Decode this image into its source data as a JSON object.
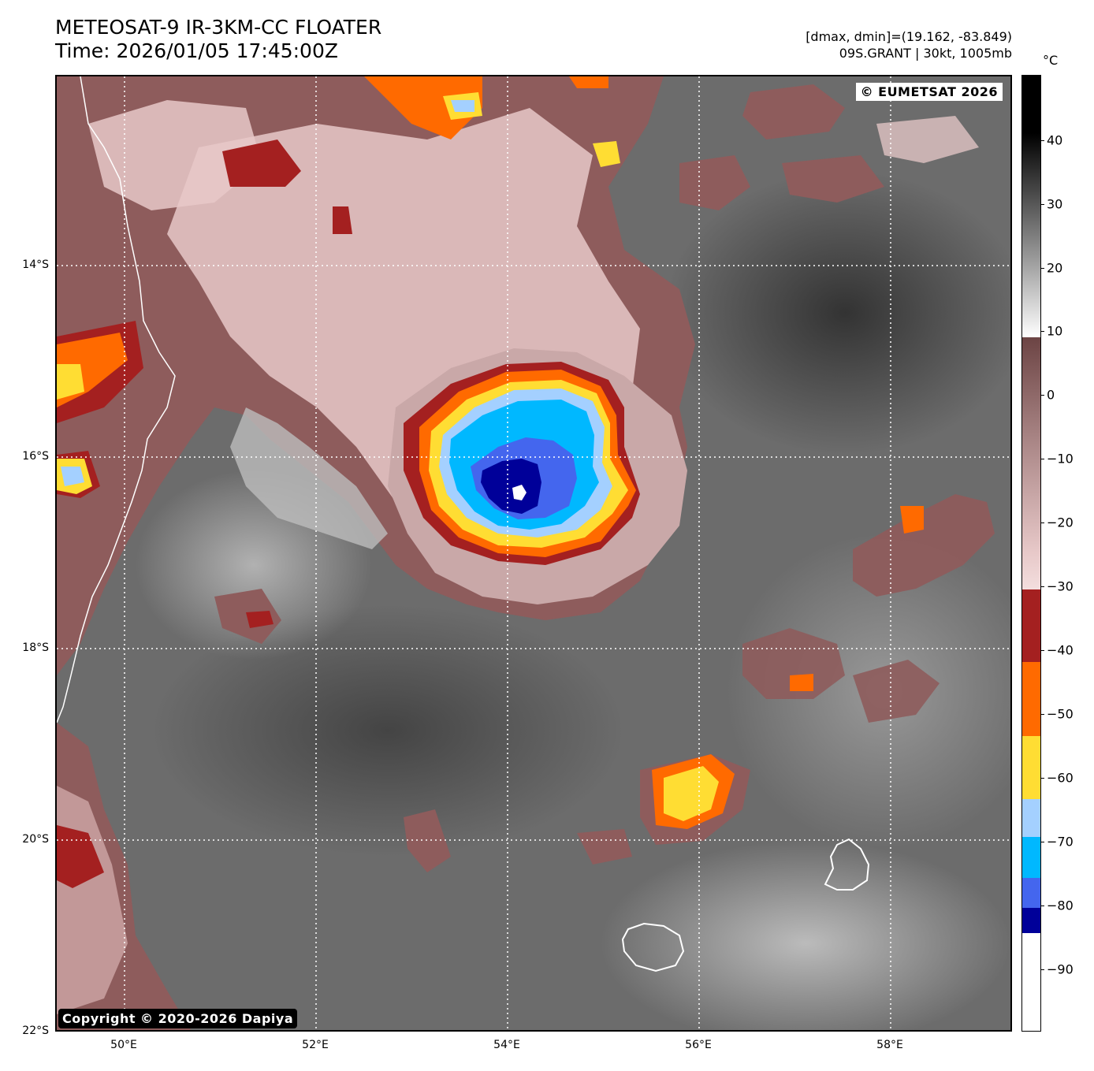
{
  "header": {
    "title_line1": "METEOSAT-9 IR-3KM-CC FLOATER",
    "title_line2": "Time: 2026/01/05 17:45:00Z",
    "dminmax": "[dmax, dmin]=(19.162, -83.849)",
    "storm": "09S.GRANT | 30kt, 1005mb"
  },
  "map": {
    "credit_top": "© EUMETSAT 2026",
    "credit_bottom": "Copyright © 2020-2026 Dapiya",
    "lat_labels": [
      "14°S",
      "16°S",
      "18°S",
      "20°S",
      "22°S"
    ],
    "lon_labels": [
      "50°E",
      "52°E",
      "54°E",
      "56°E",
      "58°E"
    ],
    "colors": {
      "background_gray": "#6a6a6a",
      "cloud_pink": "#e7c8c8",
      "cloud_mauve": "#8e5c5c",
      "dark_red": "#a42020",
      "orange": "#ff6a00",
      "yellow": "#ffdd33",
      "light_blue": "#a4d0ff",
      "cyan": "#00b8ff",
      "royal_blue": "#4466ee",
      "navy": "#000099"
    }
  },
  "colorbar": {
    "unit": "°C",
    "ticks": [
      "40",
      "30",
      "20",
      "10",
      "0",
      "−10",
      "−20",
      "−30",
      "−40",
      "−50",
      "−60",
      "−70",
      "−80",
      "−90"
    ]
  }
}
